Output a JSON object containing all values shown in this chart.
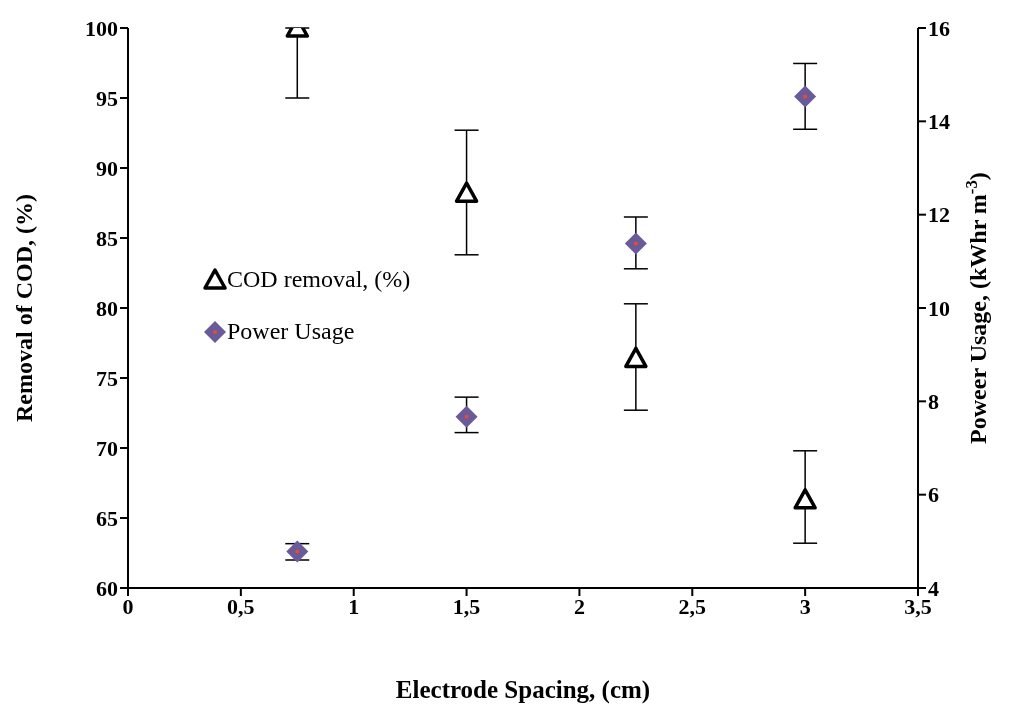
{
  "chart_data": {
    "type": "scatter",
    "xlabel": "Electrode Spacing, (cm)",
    "ylabel": "Removal of COD, (%)",
    "y2label": "Poweer Usage, (kWhr m$^{-3}$)",
    "xlim": [
      0,
      3.5
    ],
    "xticks": [
      0,
      {
        "value": 0.5,
        "label": "0,5"
      },
      1,
      {
        "value": 1.5,
        "label": "1,5"
      },
      2,
      {
        "value": 2.5,
        "label": "2,5"
      },
      3,
      {
        "value": 3.5,
        "label": "3,5"
      }
    ],
    "ylim": [
      60,
      100
    ],
    "yticks": [
      60,
      65,
      70,
      75,
      80,
      85,
      90,
      95,
      100
    ],
    "y2lim": [
      4,
      16
    ],
    "y2ticks": [
      4,
      6,
      8,
      10,
      12,
      14,
      16
    ],
    "legend": "left",
    "grid": false,
    "series": [
      {
        "name": "COD removal, (%)",
        "color": "#000000",
        "marker": "triangle",
        "x": [
          0.75,
          1.5,
          2.25,
          3
        ],
        "values": [
          100,
          88.2,
          76.4,
          66.3
        ],
        "errors": [
          [
            95,
            100
          ],
          [
            83.8,
            92.7
          ],
          [
            72.7,
            80.3
          ],
          [
            63.2,
            69.8
          ]
        ]
      },
      {
        "name": "Power Usage",
        "color": "#6a5a9a",
        "marker": "diamond",
        "axis": "y2",
        "x": [
          0.75,
          1.5,
          2.25,
          3
        ],
        "values": [
          4.78,
          7.67,
          11.38,
          14.53
        ],
        "errors": [
          [
            4.6,
            4.95
          ],
          [
            7.33,
            8.09
          ],
          [
            10.84,
            11.95
          ],
          [
            13.83,
            15.24
          ]
        ]
      }
    ]
  }
}
